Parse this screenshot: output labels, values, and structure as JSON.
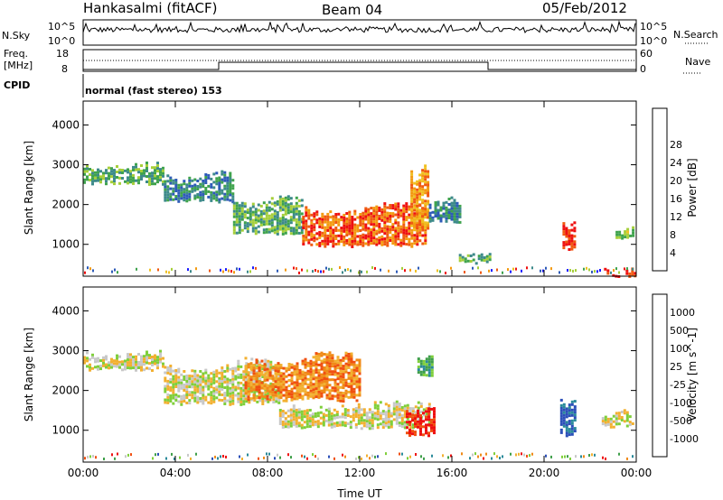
{
  "header": {
    "station": "Hankasalmi (fitACF)",
    "beam": "Beam 04",
    "date": "05/Feb/2012"
  },
  "strips": {
    "nsky_label": "N.Sky",
    "nsky_top": "10^5",
    "nsky_bottom": "10^0",
    "nsearch_label": "N.Search",
    "nsearch_top": "10^5",
    "nsearch_bottom": "10^0",
    "freq_label_1": "Freq.",
    "freq_label_2": "[MHz]",
    "freq_top": "18",
    "freq_bottom": "8",
    "nave_label": "Nave",
    "nave_top": "60",
    "nave_bottom": "0",
    "cpid_label": "CPID",
    "cpid_text": "normal (fast stereo) 153"
  },
  "chart_data": [
    {
      "type": "heatmap",
      "name": "power",
      "ylabel": "Slant Range [km]",
      "xlabel": "Time UT",
      "x_ticks": [
        "00:00",
        "04:00",
        "08:00",
        "12:00",
        "16:00",
        "20:00",
        "00:00"
      ],
      "x_range_hours": [
        0,
        24
      ],
      "y_ticks": [
        1000,
        2000,
        3000,
        4000
      ],
      "ylim": [
        200,
        4600
      ],
      "colorbar": {
        "label": "Power [dB]",
        "ticks": [
          4,
          8,
          12,
          16,
          20,
          24,
          28
        ],
        "colors": [
          "#1a1aff",
          "#2e5bb8",
          "#3d8a8a",
          "#3fa34d",
          "#a6cf3a",
          "#f0c020",
          "#f39a10",
          "#f05a10",
          "#ee1010"
        ]
      },
      "regions": [
        {
          "t0": 0.0,
          "t1": 3.5,
          "r_top": 2950,
          "r_bot": 2550,
          "level": 3
        },
        {
          "t0": 3.5,
          "t1": 6.5,
          "r_top": 2700,
          "r_bot": 2100,
          "level": 2
        },
        {
          "t0": 6.5,
          "t1": 9.5,
          "r_top": 2100,
          "r_bot": 1300,
          "level": 3
        },
        {
          "t0": 9.5,
          "t1": 14.8,
          "r_top": 1900,
          "r_bot": 1000,
          "level": 7
        },
        {
          "t0": 14.2,
          "t1": 15.0,
          "r_top": 2800,
          "r_bot": 1400,
          "level": 6
        },
        {
          "t0": 15.0,
          "t1": 16.4,
          "r_top": 2100,
          "r_bot": 1600,
          "level": 2
        },
        {
          "t0": 16.3,
          "t1": 17.6,
          "r_top": 700,
          "r_bot": 550,
          "level": 3
        },
        {
          "t0": 20.8,
          "t1": 21.3,
          "r_top": 1500,
          "r_bot": 900,
          "level": 8
        },
        {
          "t0": 23.1,
          "t1": 23.9,
          "r_top": 1350,
          "r_bot": 1150,
          "level": 4
        },
        {
          "t0": 22.6,
          "t1": 24.0,
          "r_top": 320,
          "r_bot": 220,
          "level": 8
        }
      ]
    },
    {
      "type": "heatmap",
      "name": "velocity",
      "ylabel": "Slant Range [km]",
      "xlabel": "Time UT",
      "x_ticks": [
        "00:00",
        "04:00",
        "08:00",
        "12:00",
        "16:00",
        "20:00",
        "00:00"
      ],
      "x_range_hours": [
        0,
        24
      ],
      "y_ticks": [
        1000,
        2000,
        3000,
        4000
      ],
      "ylim": [
        200,
        4600
      ],
      "colorbar": {
        "label": "Velocity [m s^-1]",
        "ticks": [
          1000,
          500,
          100,
          25,
          -25,
          -100,
          -500,
          -1000
        ],
        "colors": [
          "#2b4fb8",
          "#2a8a9a",
          "#3f9f4a",
          "#7fcf3a",
          "#c8c8c8",
          "#f2b030",
          "#f08a18",
          "#f05010",
          "#ee1010"
        ]
      },
      "regions": [
        {
          "t0": 0.0,
          "t1": 3.5,
          "r_top": 2900,
          "r_bot": 2550,
          "level": 4
        },
        {
          "t0": 3.5,
          "t1": 8.5,
          "r_top": 2600,
          "r_bot": 1700,
          "level": 4
        },
        {
          "t0": 8.5,
          "t1": 15.0,
          "r_top": 1600,
          "r_bot": 1100,
          "level": 4
        },
        {
          "t0": 7.0,
          "t1": 12.0,
          "r_top": 2800,
          "r_bot": 1800,
          "level": 6
        },
        {
          "t0": 14.0,
          "t1": 15.2,
          "r_top": 1500,
          "r_bot": 900,
          "level": 8
        },
        {
          "t0": 14.5,
          "t1": 15.2,
          "r_top": 2900,
          "r_bot": 2400,
          "level": 2
        },
        {
          "t0": 20.7,
          "t1": 21.3,
          "r_top": 1700,
          "r_bot": 900,
          "level": 0
        },
        {
          "t0": 22.5,
          "t1": 23.8,
          "r_top": 1400,
          "r_bot": 1100,
          "level": 4
        }
      ]
    }
  ]
}
